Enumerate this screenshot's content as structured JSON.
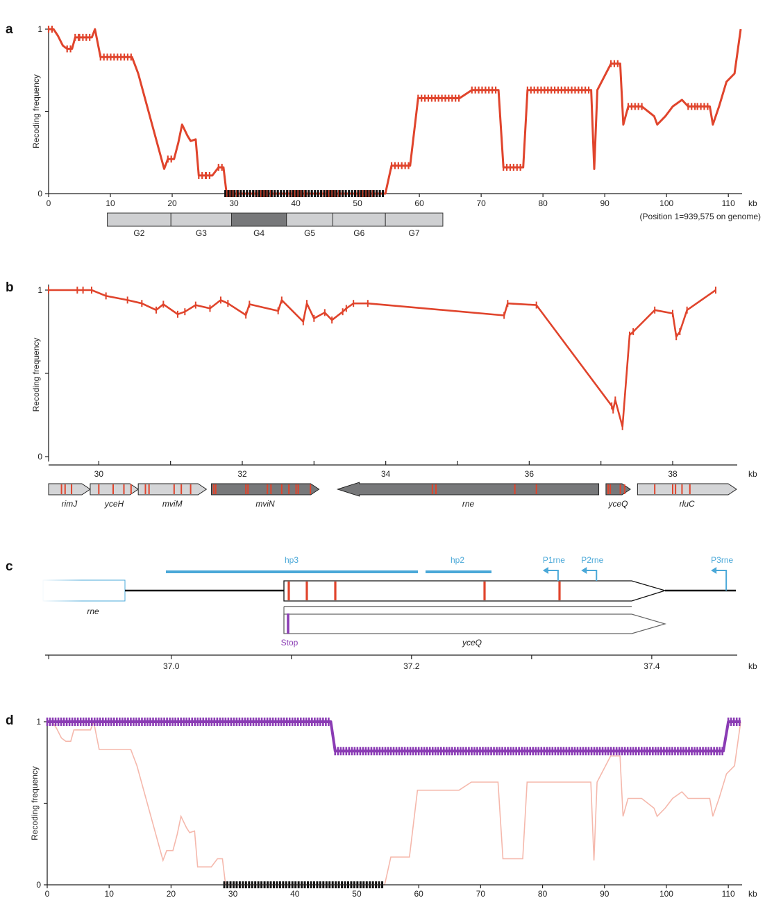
{
  "chart_data": [
    {
      "panel": "a",
      "type": "line",
      "ylabel": "Recoding frequency",
      "xunit": "kb",
      "note": "(Position 1=939,575 on genome)",
      "xlim": [
        0,
        112
      ],
      "ylim": [
        0,
        1
      ],
      "xticks": [
        0,
        10,
        20,
        30,
        40,
        50,
        60,
        70,
        80,
        90,
        100,
        110
      ],
      "yticks": [
        {
          "v": 0,
          "label": "0"
        },
        {
          "v": 0.5,
          "label": ""
        },
        {
          "v": 1,
          "label": "1"
        }
      ],
      "color": "#e0442c",
      "series": [
        {
          "x": [
            0,
            0.8,
            1.5,
            2.3,
            3,
            3.8,
            4.3,
            5,
            7,
            7.5,
            8.4,
            13.5,
            14.5,
            18.7,
            19.3,
            20.3,
            21,
            21.6,
            22.5,
            23,
            23.8,
            24.3,
            25.5,
            26.5,
            27.5,
            28.3,
            28.8,
            54.5,
            55.5,
            58.5,
            59.8,
            66.5,
            68.5,
            72.8,
            73.6,
            76.8,
            77.5,
            87.8,
            88.3,
            88.8,
            91,
            92.5,
            93,
            93.8,
            96,
            98,
            98.5,
            99.8,
            101,
            102.5,
            103.5,
            105,
            107,
            107.5,
            108.5,
            109.7,
            111,
            112
          ],
          "y": [
            1,
            1,
            0.96,
            0.9,
            0.88,
            0.88,
            0.95,
            0.95,
            0.95,
            1,
            0.83,
            0.83,
            0.73,
            0.15,
            0.21,
            0.21,
            0.31,
            0.42,
            0.35,
            0.32,
            0.33,
            0.11,
            0.11,
            0.11,
            0.16,
            0.16,
            0,
            0,
            0.17,
            0.17,
            0.58,
            0.58,
            0.63,
            0.63,
            0.16,
            0.16,
            0.63,
            0.63,
            0.15,
            0.63,
            0.79,
            0.79,
            0.42,
            0.53,
            0.53,
            0.47,
            0.42,
            0.47,
            0.53,
            0.57,
            0.53,
            0.53,
            0.53,
            0.42,
            0.53,
            0.68,
            0.73,
            1
          ]
        }
      ],
      "gene_groups": [
        {
          "label": "G2",
          "start": 9.5,
          "end": 19.8,
          "fill": "#cfd0d2"
        },
        {
          "label": "G3",
          "start": 19.8,
          "end": 29.6,
          "fill": "#cfd0d2"
        },
        {
          "label": "G4",
          "start": 29.6,
          "end": 38.5,
          "fill": "#77787a"
        },
        {
          "label": "G5",
          "start": 38.5,
          "end": 46,
          "fill": "#cfd0d2"
        },
        {
          "label": "G6",
          "start": 46,
          "end": 54.5,
          "fill": "#cfd0d2"
        },
        {
          "label": "G7",
          "start": 54.5,
          "end": 63.8,
          "fill": "#cfd0d2"
        }
      ]
    },
    {
      "panel": "b",
      "type": "line",
      "ylabel": "Recoding frequency",
      "xunit": "kb",
      "xlim": [
        29.3,
        38.9
      ],
      "ylim": [
        0,
        1
      ],
      "xticks": [
        30,
        32,
        34,
        36,
        38
      ],
      "yticks": [
        {
          "v": 0,
          "label": "0"
        },
        {
          "v": 0.5,
          "label": ""
        },
        {
          "v": 1,
          "label": "1"
        }
      ],
      "color": "#e0442c",
      "series": [
        {
          "x": [
            29.3,
            29.7,
            29.78,
            29.9,
            30.1,
            30.4,
            30.6,
            30.8,
            30.9,
            31.1,
            31.2,
            31.35,
            31.55,
            31.7,
            31.8,
            32.05,
            32.1,
            32.5,
            32.55,
            32.85,
            32.9,
            33.0,
            33.15,
            33.25,
            33.4,
            33.45,
            33.55,
            33.75,
            35.65,
            35.7,
            36.1,
            37.15,
            37.17,
            37.2,
            37.3,
            37.4,
            37.45,
            37.75,
            38.0,
            38.05,
            38.1,
            38.2,
            38.6
          ],
          "y": [
            1,
            1,
            1,
            1,
            0.965,
            0.94,
            0.92,
            0.88,
            0.915,
            0.855,
            0.87,
            0.91,
            0.89,
            0.94,
            0.92,
            0.85,
            0.915,
            0.875,
            0.94,
            0.81,
            0.92,
            0.83,
            0.865,
            0.82,
            0.87,
            0.89,
            0.92,
            0.92,
            0.848,
            0.92,
            0.91,
            0.305,
            0.28,
            0.34,
            0.18,
            0.73,
            0.75,
            0.88,
            0.86,
            0.72,
            0.75,
            0.88,
            1
          ]
        }
      ],
      "genes": [
        {
          "name": "rimJ",
          "start": 29.3,
          "end": 29.88,
          "dir": "+",
          "fill": "#d4d5d7",
          "marks": [
            29.48,
            29.53,
            29.62
          ]
        },
        {
          "name": "yceH",
          "start": 29.88,
          "end": 30.55,
          "dir": "+",
          "fill": "#d4d5d7",
          "marks": [
            30.0,
            30.2,
            30.35,
            30.45
          ]
        },
        {
          "name": "mviM",
          "start": 30.55,
          "end": 31.5,
          "dir": "+",
          "fill": "#d4d5d7",
          "marks": [
            30.65,
            30.7,
            31.05,
            31.15,
            31.28
          ]
        },
        {
          "name": "mviN",
          "start": 31.57,
          "end": 33.07,
          "dir": "+",
          "fill": "#77787a",
          "marks": [
            31.6,
            31.63,
            32.05,
            32.08,
            32.35,
            32.4,
            32.55,
            32.65,
            32.75,
            32.78,
            32.95
          ]
        },
        {
          "name": "rne",
          "start": 33.33,
          "end": 36.97,
          "dir": "-",
          "fill": "#77787a",
          "marks": [
            34.65,
            34.7,
            35.8,
            36.1
          ]
        },
        {
          "name": "yceQ",
          "start": 37.07,
          "end": 37.41,
          "dir": "+",
          "fill": "#77787a",
          "marks": [
            37.1,
            37.13,
            37.27,
            37.33
          ]
        },
        {
          "name": "rluC",
          "start": 37.51,
          "end": 38.89,
          "dir": "+",
          "fill": "#d4d5d7",
          "marks": [
            37.75,
            38.0,
            38.04,
            38.13,
            38.24
          ]
        }
      ]
    },
    {
      "panel": "c",
      "type": "diagram",
      "xunit": "kb",
      "xlim": [
        36.895,
        37.47
      ],
      "xticks": [
        {
          "v": 36.898,
          "label": ""
        },
        {
          "v": 37.0,
          "label": "37.0"
        },
        {
          "v": 37.1,
          "label": ""
        },
        {
          "v": 37.2,
          "label": "37.2"
        },
        {
          "v": 37.3,
          "label": ""
        },
        {
          "v": 37.4,
          "label": "37.4"
        }
      ],
      "features": {
        "rne_label": "rne",
        "yceQ_label": "yceQ",
        "stop_label": "Stop",
        "hp3_label": "hp3",
        "hp2_label": "hp2",
        "promoters": [
          {
            "label": "P1rne",
            "x": 37.322
          },
          {
            "label": "P2rne",
            "x": 37.354
          },
          {
            "label": "P3rne",
            "x": 37.462
          }
        ]
      }
    },
    {
      "panel": "d",
      "type": "line",
      "ylabel": "Recoding frequency",
      "xunit": "kb",
      "xlim": [
        0,
        112
      ],
      "ylim": [
        0,
        1
      ],
      "xticks": [
        0,
        10,
        20,
        30,
        40,
        50,
        60,
        70,
        80,
        90,
        100,
        110
      ],
      "yticks": [
        {
          "v": 0,
          "label": "0"
        },
        {
          "v": 0.5,
          "label": ""
        },
        {
          "v": 1,
          "label": "1"
        }
      ],
      "color": "#8a3bb4",
      "series": [
        {
          "x": [
            0,
            45.8,
            46.5,
            109.2,
            110,
            112
          ],
          "y": [
            1,
            1,
            0.82,
            0.82,
            1,
            1
          ]
        }
      ]
    }
  ]
}
